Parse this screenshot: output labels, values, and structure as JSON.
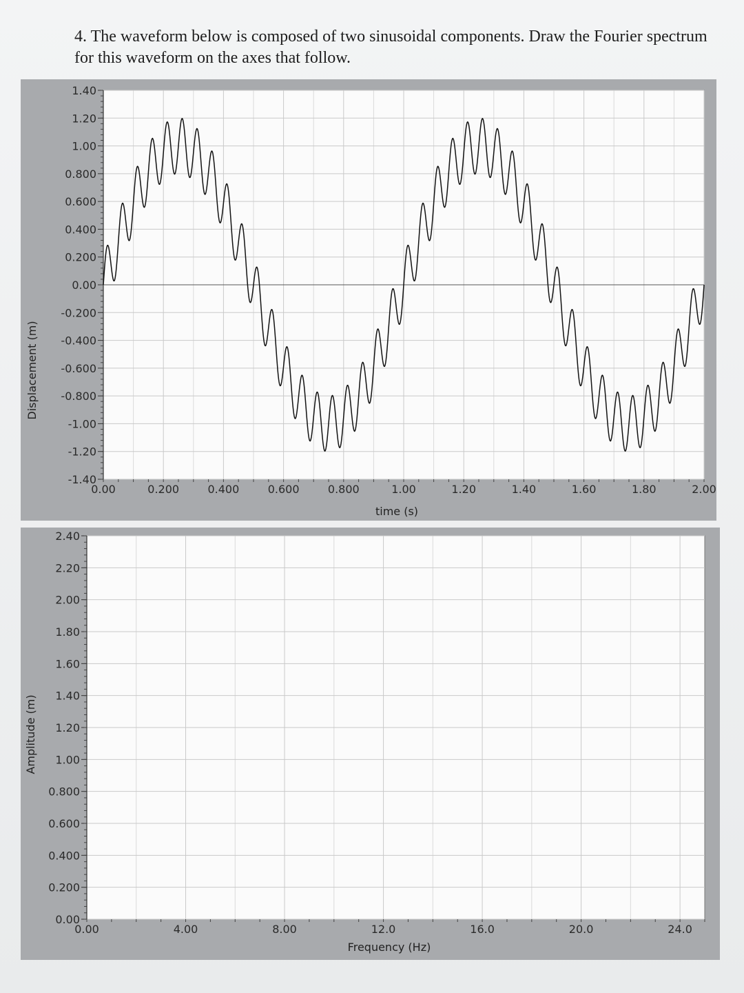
{
  "question": "4. The waveform below is composed of two sinusoidal components. Draw the Fourier spectrum for this waveform on the axes that follow.",
  "chart_data": [
    {
      "type": "line",
      "title": "",
      "xlabel": "time (s)",
      "ylabel": "Displacement (m)",
      "xlim": [
        0,
        2.0
      ],
      "ylim": [
        -1.4,
        1.4
      ],
      "xticks": [
        "0.00",
        "0.200",
        "0.400",
        "0.600",
        "0.800",
        "1.00",
        "1.20",
        "1.40",
        "1.60",
        "1.80",
        "2.00"
      ],
      "yticks": [
        "1.40",
        "1.20",
        "1.00",
        "0.800",
        "0.600",
        "0.400",
        "0.200",
        "0.00",
        "-0.200",
        "-0.400",
        "-0.600",
        "-0.800",
        "-1.00",
        "-1.20",
        "-1.40"
      ],
      "grid": true,
      "components": [
        {
          "frequency_hz": 1.0,
          "amplitude_m": 1.0
        },
        {
          "frequency_hz": 20.0,
          "amplitude_m": 0.2
        }
      ],
      "series": [
        {
          "x": [
            0.0,
            0.1,
            0.2,
            0.25,
            0.3,
            0.4,
            0.5,
            0.6,
            0.7,
            0.75,
            0.8,
            0.9,
            1.0,
            1.1,
            1.2,
            1.25,
            1.3,
            1.4,
            1.5,
            1.6,
            1.7,
            1.75,
            1.8,
            1.9,
            2.0
          ],
          "y": [
            0.0,
            0.59,
            0.95,
            1.0,
            0.95,
            0.59,
            0.0,
            -0.59,
            -0.95,
            -1.0,
            -0.95,
            -0.59,
            0.0,
            0.59,
            0.95,
            1.0,
            0.95,
            0.59,
            0.0,
            -0.59,
            -0.95,
            -1.0,
            -0.95,
            -0.59,
            0.0
          ]
        }
      ]
    },
    {
      "type": "bar",
      "title": "",
      "xlabel": "Frequency (Hz)",
      "ylabel": "Amplitude (m)",
      "xlim": [
        0,
        25.0
      ],
      "ylim": [
        0,
        2.4
      ],
      "xticks": [
        "0.00",
        "4.00",
        "8.00",
        "12.0",
        "16.0",
        "20.0",
        "24.0"
      ],
      "yticks": [
        "2.40",
        "2.20",
        "2.00",
        "1.80",
        "1.60",
        "1.40",
        "1.20",
        "1.00",
        "0.800",
        "0.600",
        "0.400",
        "0.200",
        "0.00"
      ],
      "grid": true,
      "values": []
    }
  ]
}
